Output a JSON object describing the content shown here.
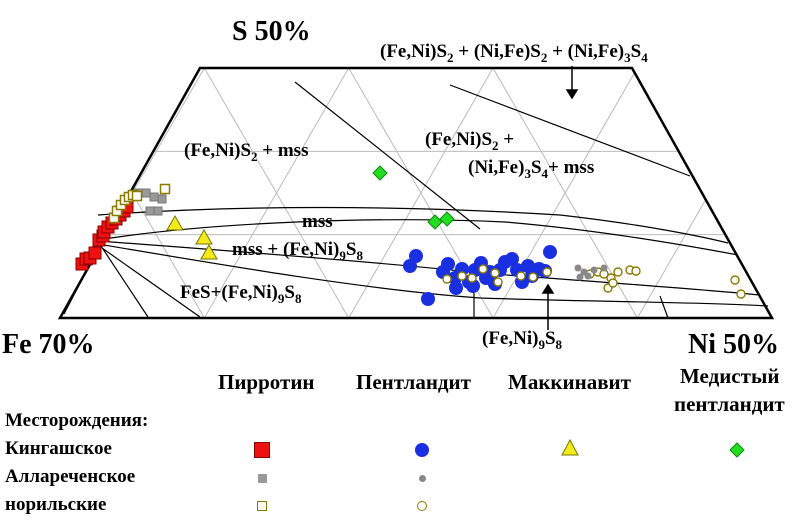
{
  "colors": {
    "kinga": {
      "fill": "#ee1111",
      "stroke": "#880000"
    },
    "allar": {
      "fill": "#999999",
      "stroke": "#777777"
    },
    "noril": {
      "fill": "#ffffff",
      "stroke": "#8a7a00"
    },
    "pyrrhotite": "#ee1111",
    "pentlandite": "#1a2fe0",
    "mackinawite": "#f2ea1a",
    "cu_pentlandite": "#22dd22",
    "grid": "#bbbbbb"
  },
  "chart_data": {
    "type": "scatter",
    "title": "",
    "vertices": {
      "top": "S 50%",
      "left": "Fe 70%",
      "right": "Ni 50%"
    },
    "field_labels": {
      "pyrite_mss": {
        "a": "(Fe,Ni)S",
        "sub_a": "2",
        "b": " + mss"
      },
      "pyrite_vs_mss_1": {
        "a": "(Fe,Ni)S",
        "sub_a": "2",
        "b": " +"
      },
      "pyrite_vs_mss_2": {
        "a": "(Ni,Fe)",
        "sub_a": "3",
        "b": "S",
        "sub_b": "4",
        "c": "+ mss"
      },
      "top_assemblage": {
        "a": "(Fe,Ni)S",
        "sub_a": "2",
        "b": " + (Ni,Fe)S",
        "sub_b": "2",
        "c": " + (Ni,Fe)",
        "sub_c": "3",
        "d": "S",
        "sub_d": "4"
      },
      "mss": "mss",
      "mss_pn": {
        "a": "mss  +  (Fe,Ni)",
        "sub_a": "9",
        "b": "S",
        "sub_b": "8"
      },
      "fes_pn": {
        "a": "FeS+(Fe,Ni)",
        "sub_a": "9",
        "b": "S",
        "sub_b": "8"
      },
      "pn": {
        "a": "(Fe,Ni)",
        "sub_a": "9",
        "b": "S",
        "sub_b": "8"
      }
    },
    "series": [
      {
        "group": "kinga",
        "mineral": "pyrrhotite",
        "points": [
          [
            82,
            264
          ],
          [
            86,
            259
          ],
          [
            90,
            258
          ],
          [
            95,
            253
          ],
          [
            99,
            240
          ],
          [
            103,
            236
          ],
          [
            104,
            232
          ],
          [
            108,
            227
          ],
          [
            112,
            223
          ],
          [
            116,
            219
          ],
          [
            120,
            215
          ],
          [
            124,
            211
          ],
          [
            127,
            207
          ]
        ]
      },
      {
        "group": "allar",
        "mineral": "pyrrhotite",
        "points": [
          [
            138,
            193
          ],
          [
            146,
            193
          ],
          [
            154,
            197
          ],
          [
            162,
            199
          ],
          [
            150,
            211
          ],
          [
            158,
            211
          ],
          [
            118,
            210
          ]
        ]
      },
      {
        "group": "noril",
        "mineral": "pyrrhotite",
        "points": [
          [
            114,
            218
          ],
          [
            117,
            211
          ],
          [
            121,
            205
          ],
          [
            125,
            200
          ],
          [
            129,
            197
          ],
          [
            133,
            195
          ],
          [
            137,
            196
          ],
          [
            165,
            189
          ]
        ]
      },
      {
        "group": "kinga",
        "mineral": "mackinawite",
        "points": [
          [
            175,
            224
          ],
          [
            204,
            238
          ],
          [
            209,
            253
          ]
        ]
      },
      {
        "group": "kinga",
        "mineral": "cu_pentlandite",
        "points": [
          [
            380,
            173
          ],
          [
            435,
            222
          ],
          [
            447,
            219
          ]
        ]
      },
      {
        "group": "kinga",
        "mineral": "pentlandite",
        "points": [
          [
            410,
            266
          ],
          [
            416,
            256
          ],
          [
            428,
            299
          ],
          [
            443,
            272
          ],
          [
            448,
            264
          ],
          [
            455,
            278
          ],
          [
            462,
            269
          ],
          [
            469,
            282
          ],
          [
            475,
            270
          ],
          [
            481,
            263
          ],
          [
            486,
            278
          ],
          [
            490,
            272
          ],
          [
            495,
            284
          ],
          [
            500,
            270
          ],
          [
            505,
            262
          ],
          [
            512,
            259
          ],
          [
            517,
            270
          ],
          [
            522,
            282
          ],
          [
            528,
            266
          ],
          [
            532,
            276
          ],
          [
            539,
            269
          ],
          [
            545,
            271
          ],
          [
            550,
            252
          ],
          [
            456,
            288
          ],
          [
            473,
            286
          ]
        ]
      },
      {
        "group": "noril",
        "mineral": "pentlandite",
        "points": [
          [
            447,
            279
          ],
          [
            462,
            276
          ],
          [
            472,
            278
          ],
          [
            483,
            269
          ],
          [
            495,
            273
          ],
          [
            498,
            282
          ],
          [
            521,
            276
          ],
          [
            533,
            277
          ],
          [
            547,
            272
          ],
          [
            590,
            274
          ],
          [
            598,
            272
          ],
          [
            604,
            274
          ],
          [
            611,
            278
          ],
          [
            618,
            272
          ],
          [
            630,
            270
          ],
          [
            636,
            271
          ],
          [
            608,
            288
          ],
          [
            613,
            283
          ],
          [
            735,
            280
          ],
          [
            741,
            294
          ]
        ]
      },
      {
        "group": "allar",
        "mineral": "pentlandite",
        "points": [
          [
            578,
            268
          ],
          [
            584,
            272
          ],
          [
            580,
            277
          ],
          [
            588,
            276
          ],
          [
            594,
            270
          ],
          [
            604,
            268
          ]
        ]
      }
    ]
  },
  "legend": {
    "mineral_headers": [
      "Пирротин",
      "Пентландит",
      "Маккинавит",
      "Медистый",
      "пентландит"
    ],
    "deposits_title": "Месторождения:",
    "rows": [
      "Кингашское",
      "Аллареченское",
      "норильские"
    ]
  }
}
